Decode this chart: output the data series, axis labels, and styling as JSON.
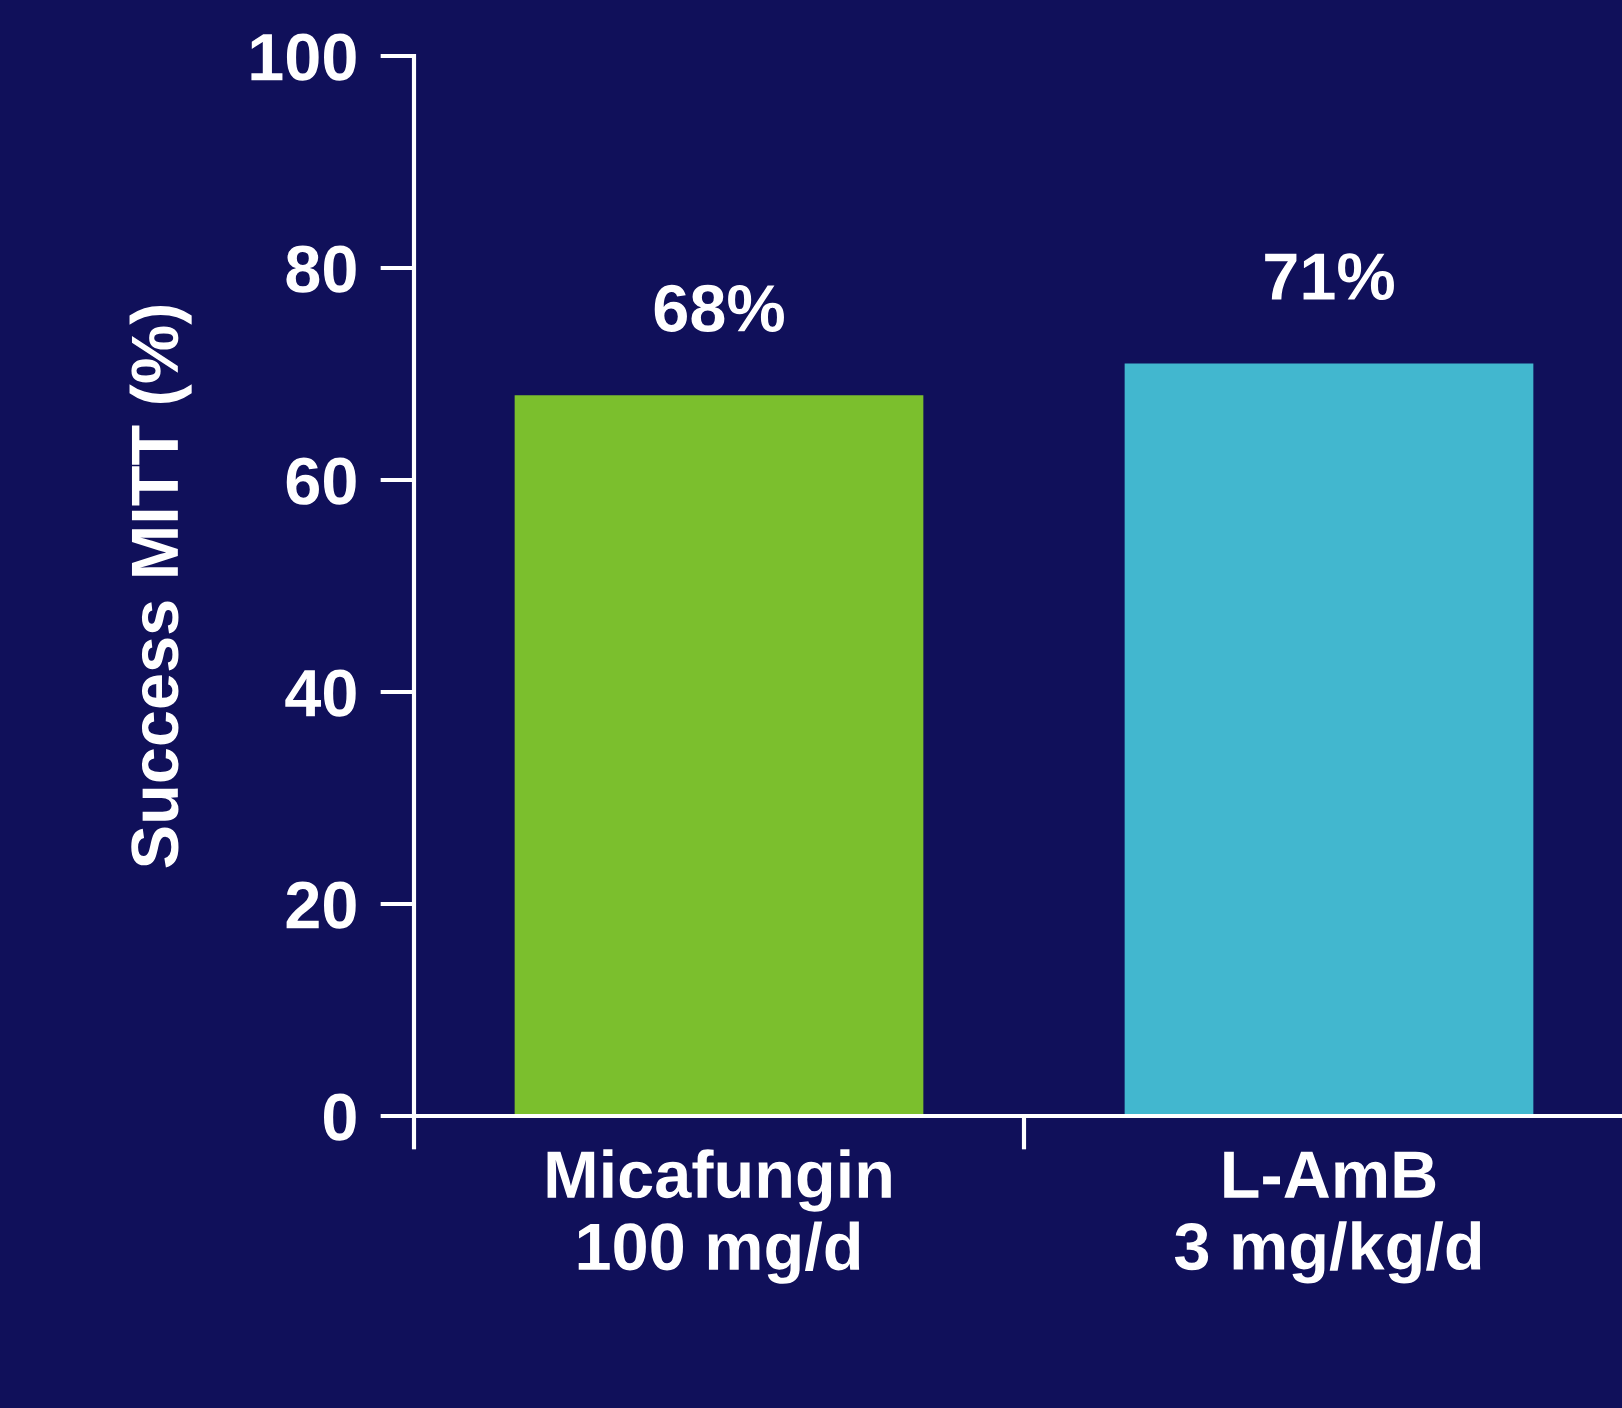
{
  "chart_data": {
    "type": "bar",
    "ylabel": "Success MITT (%)",
    "categories": [
      "Micafungin\n100 mg/d",
      "L-AmB\n3 mg/kg/d"
    ],
    "values": [
      68,
      71
    ],
    "colors": [
      "#7bbf2d",
      "#42b7cf"
    ],
    "value_labels": [
      "68%",
      "71%"
    ],
    "ylim": [
      0,
      100
    ],
    "yticks": [
      0,
      20,
      40,
      60,
      80,
      100
    ],
    "grid": false,
    "legend": false
  }
}
